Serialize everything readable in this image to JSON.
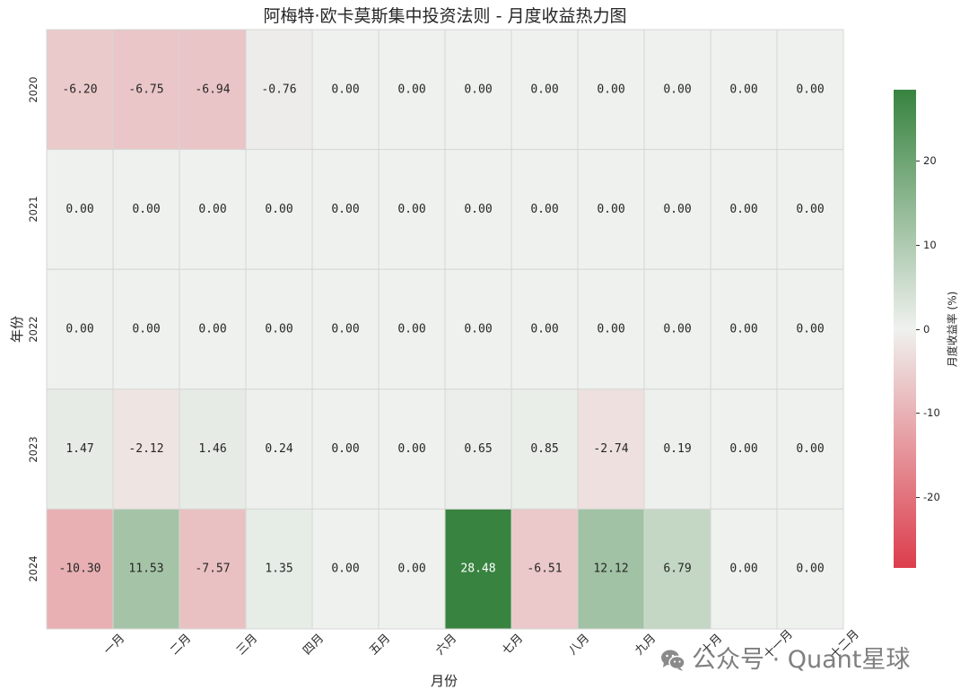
{
  "chart_data": {
    "type": "heatmap",
    "title": "阿梅特·欧卡莫斯集中投资法则 - 月度收益热力图",
    "xlabel": "月份",
    "ylabel": "年份",
    "x": [
      "一月",
      "二月",
      "三月",
      "四月",
      "五月",
      "六月",
      "七月",
      "八月",
      "九月",
      "十月",
      "十一月",
      "十二月"
    ],
    "y": [
      "2020",
      "2021",
      "2022",
      "2023",
      "2024"
    ],
    "values": [
      [
        -6.2,
        -6.75,
        -6.94,
        -0.76,
        0.0,
        0.0,
        0.0,
        0.0,
        0.0,
        0.0,
        0.0,
        0.0
      ],
      [
        0.0,
        0.0,
        0.0,
        0.0,
        0.0,
        0.0,
        0.0,
        0.0,
        0.0,
        0.0,
        0.0,
        0.0
      ],
      [
        0.0,
        0.0,
        0.0,
        0.0,
        0.0,
        0.0,
        0.0,
        0.0,
        0.0,
        0.0,
        0.0,
        0.0
      ],
      [
        1.47,
        -2.12,
        1.46,
        0.24,
        0.0,
        0.0,
        0.65,
        0.85,
        -2.74,
        0.19,
        0.0,
        0.0
      ],
      [
        -10.3,
        11.53,
        -7.57,
        1.35,
        0.0,
        0.0,
        28.48,
        -6.51,
        12.12,
        6.79,
        0.0,
        0.0
      ]
    ],
    "annotations": [
      [
        "-6.20",
        "-6.75",
        "-6.94",
        "-0.76",
        "0.00",
        "0.00",
        "0.00",
        "0.00",
        "0.00",
        "0.00",
        "0.00",
        "0.00"
      ],
      [
        "0.00",
        "0.00",
        "0.00",
        "0.00",
        "0.00",
        "0.00",
        "0.00",
        "0.00",
        "0.00",
        "0.00",
        "0.00",
        "0.00"
      ],
      [
        "0.00",
        "0.00",
        "0.00",
        "0.00",
        "0.00",
        "0.00",
        "0.00",
        "0.00",
        "0.00",
        "0.00",
        "0.00",
        "0.00"
      ],
      [
        "1.47",
        "-2.12",
        "1.46",
        "0.24",
        "0.00",
        "0.00",
        "0.65",
        "0.85",
        "-2.74",
        "0.19",
        "0.00",
        "0.00"
      ],
      [
        "-10.30",
        "11.53",
        "-7.57",
        "1.35",
        "0.00",
        "0.00",
        "28.48",
        "-6.51",
        "12.12",
        "6.79",
        "0.00",
        "0.00"
      ]
    ],
    "colorbar": {
      "label": "月度收益率 (%)",
      "placement": "right",
      "vmin": -28.48,
      "vmax": 28.48,
      "center": 0,
      "ticks": [
        "20",
        "10",
        "0",
        "-10",
        "-20"
      ]
    },
    "colors": {
      "negative": "#dc3d4c",
      "center": "#eff1ee",
      "positive": "#37833f",
      "grid": "#d6d7d5"
    },
    "grid": true
  },
  "watermark": {
    "icon": "wechat-icon",
    "text": "公众号 · Quant星球"
  }
}
